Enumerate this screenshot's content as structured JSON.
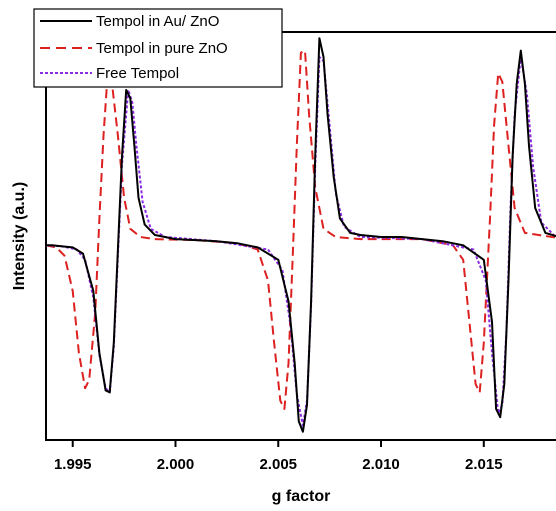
{
  "chart_data": {
    "type": "line",
    "xlabel": "g factor",
    "ylabel": "Intensity (a.u.)",
    "xlim": [
      1.9937,
      2.019
    ],
    "ylim": [
      -0.97,
      1.0
    ],
    "x_ticks": [
      1.995,
      2.0,
      2.005,
      2.01,
      2.015
    ],
    "x_tick_labels": [
      "1.995",
      "2.000",
      "2.005",
      "2.010",
      "2.015"
    ],
    "y_ticks_shown": false,
    "legend_position": "top-left",
    "series": [
      {
        "name": "Tempol in Au/ ZnO",
        "color": "#000000",
        "style": "solid",
        "points": [
          [
            1.9937,
            -0.03
          ],
          [
            1.994,
            -0.03
          ],
          [
            1.9945,
            -0.035
          ],
          [
            1.995,
            -0.04
          ],
          [
            1.9955,
            -0.07
          ],
          [
            1.996,
            -0.25
          ],
          [
            1.9963,
            -0.55
          ],
          [
            1.9966,
            -0.73
          ],
          [
            1.9968,
            -0.74
          ],
          [
            1.997,
            -0.5
          ],
          [
            1.9972,
            -0.05
          ],
          [
            1.9974,
            0.4
          ],
          [
            1.9976,
            0.72
          ],
          [
            1.9978,
            0.68
          ],
          [
            1.998,
            0.45
          ],
          [
            1.9982,
            0.2
          ],
          [
            1.9985,
            0.07
          ],
          [
            1.999,
            0.02
          ],
          [
            2.0,
            0.0
          ],
          [
            2.001,
            -0.005
          ],
          [
            2.002,
            -0.01
          ],
          [
            2.003,
            -0.02
          ],
          [
            2.004,
            -0.04
          ],
          [
            2.005,
            -0.1
          ],
          [
            2.0055,
            -0.3
          ],
          [
            2.0058,
            -0.6
          ],
          [
            2.006,
            -0.88
          ],
          [
            2.0062,
            -0.93
          ],
          [
            2.0064,
            -0.8
          ],
          [
            2.0066,
            -0.3
          ],
          [
            2.0068,
            0.4
          ],
          [
            2.007,
            0.97
          ],
          [
            2.0072,
            0.88
          ],
          [
            2.0074,
            0.6
          ],
          [
            2.0077,
            0.3
          ],
          [
            2.008,
            0.1
          ],
          [
            2.0085,
            0.03
          ],
          [
            2.009,
            0.02
          ],
          [
            2.01,
            0.01
          ],
          [
            2.011,
            0.01
          ],
          [
            2.012,
            0.0
          ],
          [
            2.013,
            -0.01
          ],
          [
            2.014,
            -0.03
          ],
          [
            2.015,
            -0.1
          ],
          [
            2.0154,
            -0.4
          ],
          [
            2.0156,
            -0.82
          ],
          [
            2.0158,
            -0.86
          ],
          [
            2.016,
            -0.7
          ],
          [
            2.0162,
            -0.2
          ],
          [
            2.0164,
            0.4
          ],
          [
            2.0166,
            0.75
          ],
          [
            2.0168,
            0.91
          ],
          [
            2.017,
            0.75
          ],
          [
            2.0172,
            0.45
          ],
          [
            2.0175,
            0.15
          ],
          [
            2.018,
            0.03
          ],
          [
            2.019,
            0.0
          ]
        ]
      },
      {
        "name": "Tempol in pure ZnO",
        "color": "#dd2020",
        "style": "dashed",
        "points": [
          [
            1.9937,
            -0.03
          ],
          [
            1.9942,
            -0.04
          ],
          [
            1.9946,
            -0.08
          ],
          [
            1.995,
            -0.25
          ],
          [
            1.9953,
            -0.55
          ],
          [
            1.9956,
            -0.72
          ],
          [
            1.9958,
            -0.68
          ],
          [
            1.9961,
            -0.35
          ],
          [
            1.9963,
            0.1
          ],
          [
            1.9965,
            0.5
          ],
          [
            1.9967,
            0.8
          ],
          [
            1.9969,
            0.76
          ],
          [
            1.9972,
            0.5
          ],
          [
            1.9975,
            0.2
          ],
          [
            1.9978,
            0.05
          ],
          [
            1.9983,
            0.01
          ],
          [
            1.999,
            0.0
          ],
          [
            2.001,
            -0.005
          ],
          [
            2.003,
            -0.02
          ],
          [
            2.004,
            -0.05
          ],
          [
            2.0045,
            -0.2
          ],
          [
            2.0048,
            -0.5
          ],
          [
            2.0051,
            -0.78
          ],
          [
            2.0053,
            -0.82
          ],
          [
            2.0055,
            -0.6
          ],
          [
            2.0057,
            -0.1
          ],
          [
            2.0059,
            0.45
          ],
          [
            2.0061,
            0.9
          ],
          [
            2.0063,
            0.91
          ],
          [
            2.0065,
            0.6
          ],
          [
            2.0068,
            0.25
          ],
          [
            2.0072,
            0.05
          ],
          [
            2.0078,
            0.01
          ],
          [
            2.009,
            0.0
          ],
          [
            2.012,
            0.0
          ],
          [
            2.0135,
            -0.03
          ],
          [
            2.014,
            -0.1
          ],
          [
            2.0143,
            -0.4
          ],
          [
            2.0146,
            -0.7
          ],
          [
            2.0148,
            -0.74
          ],
          [
            2.015,
            -0.5
          ],
          [
            2.0153,
            0.1
          ],
          [
            2.0155,
            0.55
          ],
          [
            2.0157,
            0.8
          ],
          [
            2.0159,
            0.76
          ],
          [
            2.0162,
            0.45
          ],
          [
            2.0165,
            0.15
          ],
          [
            2.017,
            0.03
          ],
          [
            2.019,
            0.0
          ]
        ]
      },
      {
        "name": "Free Tempol",
        "color": "#8b2be2",
        "style": "dotted",
        "points": [
          [
            1.9937,
            -0.03
          ],
          [
            1.9945,
            -0.035
          ],
          [
            1.9952,
            -0.05
          ],
          [
            1.9956,
            -0.1
          ],
          [
            1.996,
            -0.28
          ],
          [
            1.9963,
            -0.56
          ],
          [
            1.9966,
            -0.72
          ],
          [
            1.9968,
            -0.74
          ],
          [
            1.997,
            -0.52
          ],
          [
            1.9972,
            -0.08
          ],
          [
            1.9974,
            0.36
          ],
          [
            1.9977,
            0.72
          ],
          [
            1.9979,
            0.66
          ],
          [
            1.9981,
            0.45
          ],
          [
            1.9984,
            0.18
          ],
          [
            1.9988,
            0.05
          ],
          [
            1.9995,
            0.01
          ],
          [
            2.002,
            -0.01
          ],
          [
            2.0045,
            -0.05
          ],
          [
            2.0052,
            -0.15
          ],
          [
            2.0056,
            -0.42
          ],
          [
            2.0059,
            -0.75
          ],
          [
            2.0062,
            -0.9
          ],
          [
            2.0064,
            -0.78
          ],
          [
            2.0066,
            -0.32
          ],
          [
            2.0068,
            0.35
          ],
          [
            2.007,
            0.88
          ],
          [
            2.0072,
            0.86
          ],
          [
            2.0075,
            0.55
          ],
          [
            2.0078,
            0.22
          ],
          [
            2.0082,
            0.06
          ],
          [
            2.009,
            0.01
          ],
          [
            2.012,
            0.0
          ],
          [
            2.0145,
            -0.05
          ],
          [
            2.0151,
            -0.2
          ],
          [
            2.0154,
            -0.55
          ],
          [
            2.0157,
            -0.84
          ],
          [
            2.0159,
            -0.8
          ],
          [
            2.0161,
            -0.45
          ],
          [
            2.0163,
            0.15
          ],
          [
            2.0165,
            0.6
          ],
          [
            2.0168,
            0.88
          ],
          [
            2.0171,
            0.7
          ],
          [
            2.0174,
            0.35
          ],
          [
            2.0178,
            0.08
          ],
          [
            2.0185,
            0.01
          ],
          [
            2.019,
            0.0
          ]
        ]
      }
    ]
  }
}
